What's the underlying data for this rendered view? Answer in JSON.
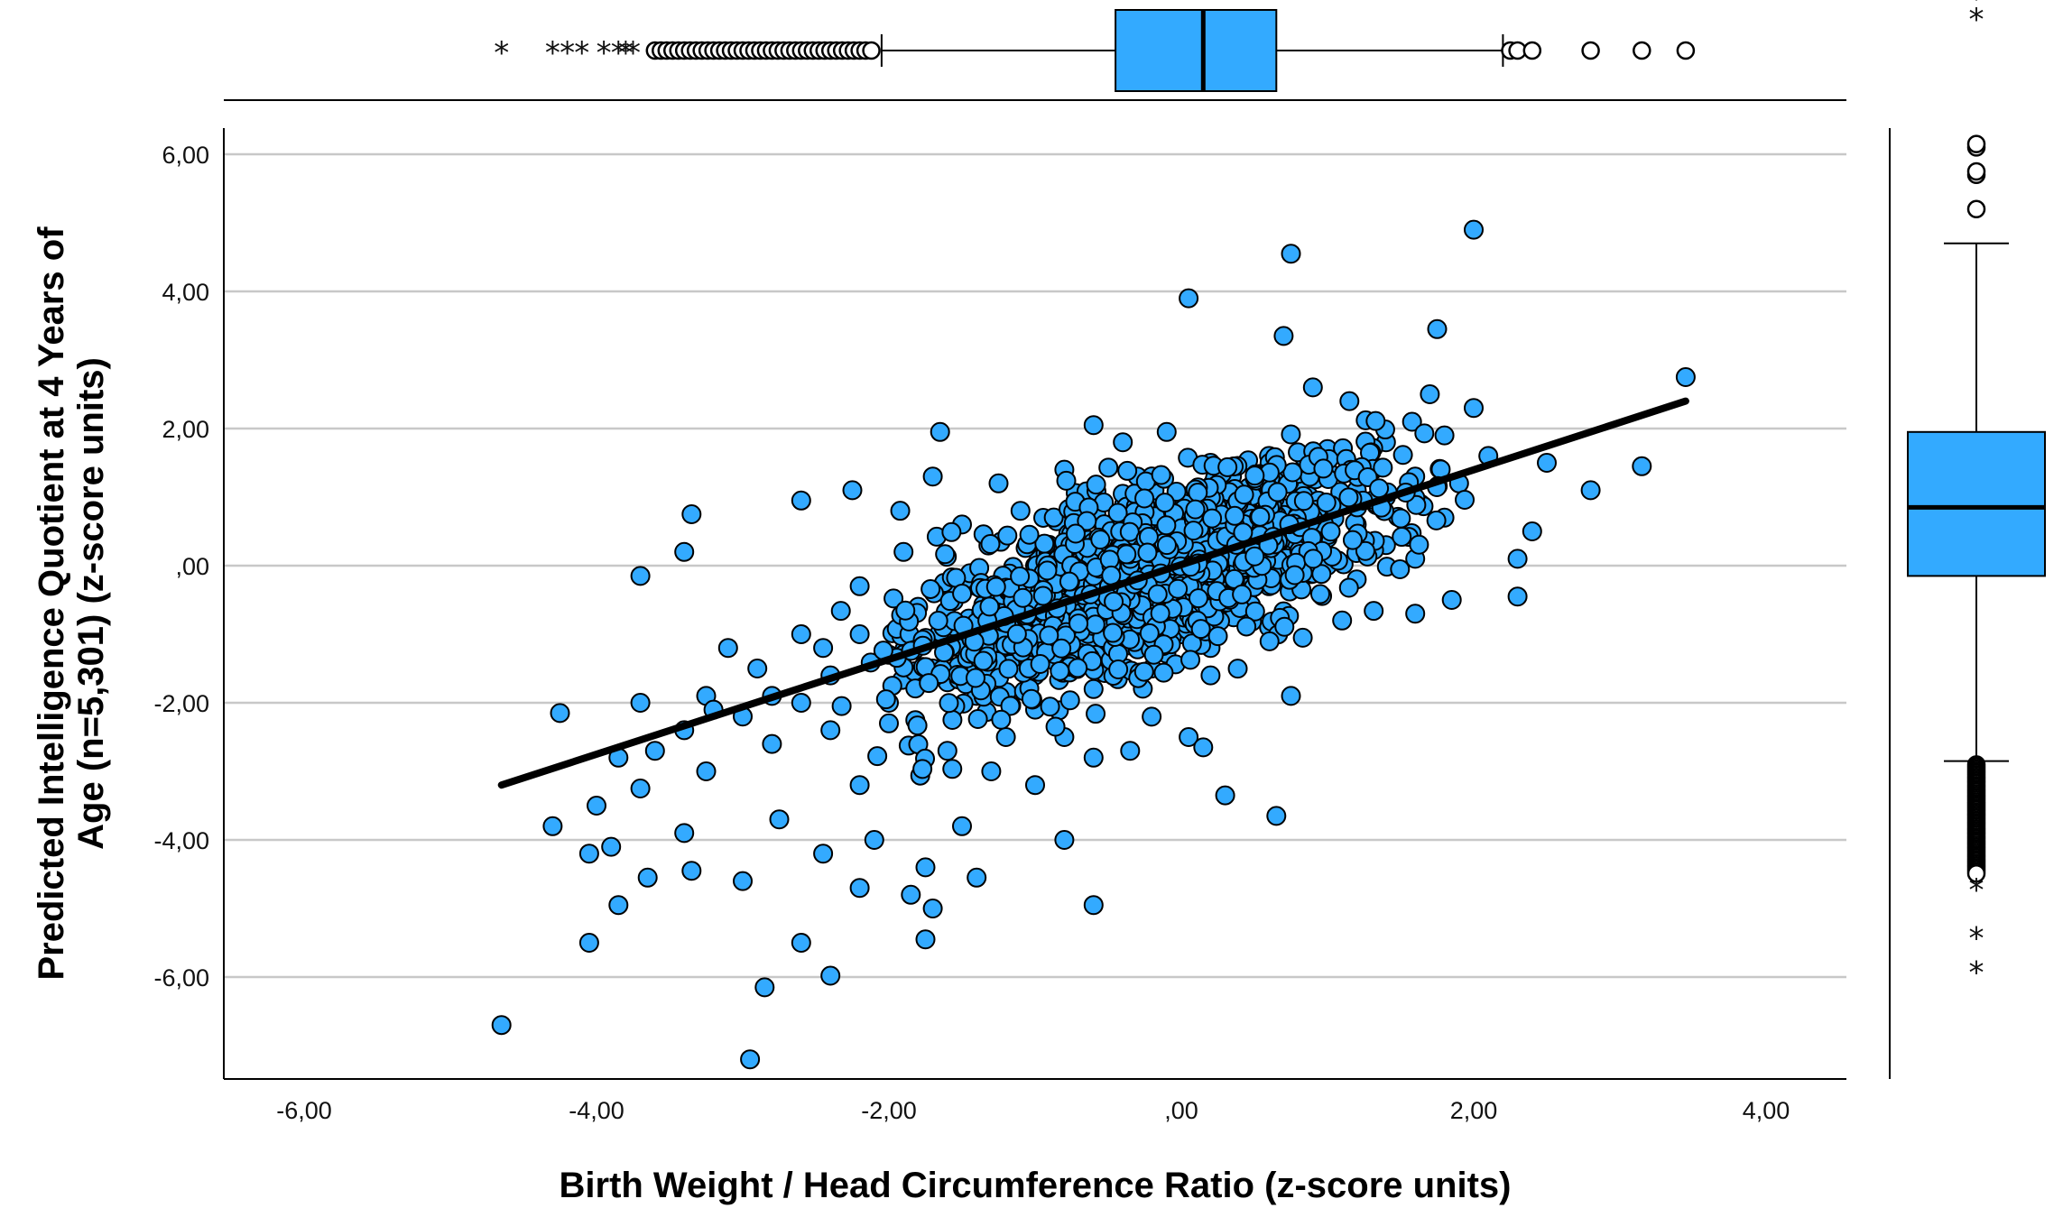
{
  "chart_data": {
    "type": "scatter",
    "title": "",
    "xlabel": "Birth Weight / Head Circumference Ratio (z-score units)",
    "ylabel_line1": "Predicted Intelligence Quotient at 4 Years of",
    "ylabel_line2": "Age (n=5,301) (z-score units)",
    "xlim": [
      -7.0,
      4.6
    ],
    "ylim": [
      -7.5,
      6.4
    ],
    "x_ticks": [
      -6,
      -4,
      -2,
      0,
      2,
      4
    ],
    "x_tick_labels": [
      "-6,00",
      "-4,00",
      "-2,00",
      ",00",
      "2,00",
      "4,00"
    ],
    "y_ticks": [
      6,
      4,
      2,
      0,
      -2,
      -4,
      -6
    ],
    "y_tick_labels": [
      "6,00",
      "4,00",
      "2,00",
      ",00",
      "-2,00",
      "-4,00",
      "-6,00"
    ],
    "grid": "horizontal",
    "marker_color": "#33AAFF",
    "marker_edge": "#000000",
    "fit_line": {
      "x": [
        -4.65,
        3.45
      ],
      "y": [
        -3.2,
        2.4
      ],
      "color": "#000000"
    },
    "sample_points": [
      [
        -4.65,
        -6.7
      ],
      [
        -2.95,
        -7.2
      ],
      [
        -2.85,
        -6.15
      ],
      [
        -2.4,
        -5.98
      ],
      [
        -4.05,
        -5.5
      ],
      [
        -2.6,
        -5.5
      ],
      [
        -1.75,
        -5.45
      ],
      [
        -3.85,
        -4.95
      ],
      [
        -0.6,
        -4.95
      ],
      [
        -1.7,
        -5.0
      ],
      [
        -1.85,
        -4.8
      ],
      [
        -3.0,
        -4.6
      ],
      [
        -3.35,
        -4.45
      ],
      [
        -2.2,
        -4.7
      ],
      [
        -1.4,
        -4.55
      ],
      [
        -3.65,
        -4.55
      ],
      [
        -1.75,
        -4.4
      ],
      [
        -4.3,
        -3.8
      ],
      [
        -4.05,
        -4.2
      ],
      [
        -3.9,
        -4.1
      ],
      [
        -2.45,
        -4.2
      ],
      [
        -2.1,
        -4.0
      ],
      [
        -0.8,
        -4.0
      ],
      [
        -4.0,
        -3.5
      ],
      [
        -3.4,
        -3.9
      ],
      [
        -1.5,
        -3.8
      ],
      [
        -2.75,
        -3.7
      ],
      [
        0.3,
        -3.35
      ],
      [
        0.65,
        -3.65
      ],
      [
        -1.0,
        -3.2
      ],
      [
        -3.7,
        -3.25
      ],
      [
        -3.25,
        -3.0
      ],
      [
        -2.2,
        -3.2
      ],
      [
        -1.3,
        -3.0
      ],
      [
        -4.25,
        -2.15
      ],
      [
        -3.7,
        -2.0
      ],
      [
        -3.25,
        -1.9
      ],
      [
        -2.9,
        -1.5
      ],
      [
        -2.45,
        -1.2
      ],
      [
        -3.7,
        -0.15
      ],
      [
        -3.4,
        0.2
      ],
      [
        -3.35,
        0.75
      ],
      [
        -2.6,
        0.95
      ],
      [
        -2.25,
        1.1
      ],
      [
        -1.7,
        1.3
      ],
      [
        -1.65,
        1.95
      ],
      [
        -1.25,
        1.2
      ],
      [
        -0.8,
        1.4
      ],
      [
        -0.6,
        2.05
      ],
      [
        -0.4,
        1.8
      ],
      [
        -0.1,
        1.95
      ],
      [
        0.05,
        3.9
      ],
      [
        0.75,
        4.55
      ],
      [
        0.7,
        3.35
      ],
      [
        2.0,
        4.9
      ],
      [
        1.75,
        3.45
      ],
      [
        0.9,
        2.6
      ],
      [
        1.15,
        2.4
      ],
      [
        1.7,
        2.5
      ],
      [
        2.0,
        2.3
      ],
      [
        2.5,
        1.5
      ],
      [
        3.15,
        1.45
      ],
      [
        3.45,
        2.75
      ],
      [
        2.8,
        1.1
      ],
      [
        2.4,
        0.5
      ],
      [
        2.3,
        0.1
      ],
      [
        2.3,
        -0.45
      ],
      [
        1.85,
        -0.5
      ],
      [
        1.6,
        -0.7
      ],
      [
        1.1,
        -0.8
      ],
      [
        0.75,
        -1.9
      ],
      [
        0.2,
        -1.6
      ],
      [
        0.05,
        -2.5
      ],
      [
        0.15,
        -2.65
      ],
      [
        -0.35,
        -2.7
      ],
      [
        -0.6,
        -2.8
      ],
      [
        -0.8,
        -2.5
      ],
      [
        -1.2,
        -2.5
      ],
      [
        -1.6,
        -2.7
      ],
      [
        -2.0,
        -2.3
      ],
      [
        -2.4,
        -2.4
      ],
      [
        -2.8,
        -2.6
      ],
      [
        -3.0,
        -2.2
      ],
      [
        -3.4,
        -2.4
      ],
      [
        -3.6,
        -2.7
      ],
      [
        -3.85,
        -2.8
      ],
      [
        -3.1,
        -1.2
      ],
      [
        -2.6,
        -1.0
      ],
      [
        -2.2,
        -0.3
      ],
      [
        -1.9,
        0.2
      ],
      [
        -1.5,
        0.6
      ],
      [
        -1.1,
        0.8
      ],
      [
        -0.7,
        1.0
      ],
      [
        -0.3,
        1.3
      ],
      [
        0.2,
        1.5
      ],
      [
        0.6,
        1.6
      ],
      [
        1.0,
        1.7
      ],
      [
        1.4,
        1.8
      ],
      [
        1.8,
        1.9
      ],
      [
        1.2,
        1.1
      ],
      [
        0.8,
        0.9
      ],
      [
        0.4,
        0.5
      ],
      [
        0.0,
        0.2
      ],
      [
        -0.4,
        -0.1
      ],
      [
        -0.8,
        -0.4
      ],
      [
        -1.2,
        -0.7
      ],
      [
        -1.6,
        -1.0
      ],
      [
        -2.0,
        -1.3
      ],
      [
        -2.4,
        -1.6
      ],
      [
        -2.8,
        -1.9
      ],
      [
        -3.2,
        -2.1
      ],
      [
        -1.4,
        -1.9
      ],
      [
        -1.0,
        -1.6
      ],
      [
        -0.6,
        -1.2
      ],
      [
        -0.2,
        -0.9
      ],
      [
        0.2,
        -0.6
      ],
      [
        0.6,
        -0.3
      ],
      [
        1.0,
        0.0
      ],
      [
        1.4,
        0.3
      ],
      [
        1.8,
        0.7
      ],
      [
        1.6,
        1.3
      ],
      [
        1.2,
        0.6
      ],
      [
        0.8,
        0.2
      ],
      [
        0.4,
        -0.2
      ],
      [
        0.0,
        -0.5
      ],
      [
        -0.4,
        -0.8
      ],
      [
        -0.8,
        -1.1
      ],
      [
        -1.2,
        -1.4
      ],
      [
        -1.6,
        -1.7
      ],
      [
        -2.0,
        -2.0
      ],
      [
        -1.8,
        -0.6
      ],
      [
        -1.4,
        -0.3
      ],
      [
        -1.0,
        0.0
      ],
      [
        -0.6,
        0.3
      ],
      [
        -0.2,
        0.6
      ],
      [
        0.2,
        0.9
      ],
      [
        0.6,
        1.2
      ],
      [
        1.0,
        1.4
      ],
      [
        1.4,
        1.0
      ],
      [
        1.0,
        0.4
      ],
      [
        0.6,
        -0.9
      ],
      [
        0.2,
        -1.2
      ],
      [
        -0.2,
        -1.5
      ],
      [
        -0.6,
        -1.8
      ],
      [
        -1.0,
        -2.1
      ],
      [
        -0.4,
        0.0
      ],
      [
        0.0,
        -1.0
      ],
      [
        0.4,
        0.3
      ],
      [
        0.8,
        0.6
      ],
      [
        1.2,
        -0.2
      ],
      [
        1.6,
        0.1
      ],
      [
        1.9,
        1.2
      ],
      [
        2.1,
        1.6
      ],
      [
        -2.6,
        -2.0
      ],
      [
        -2.2,
        -1.0
      ],
      [
        -1.7,
        -1.5
      ]
    ],
    "top_boxplot": {
      "variable": "Birth Weight / Head Circumference Ratio (z-score units)",
      "q1": -0.45,
      "median": 0.15,
      "q3": 0.65,
      "whisker_low": -2.05,
      "whisker_high": 2.2,
      "outliers_circle": [
        2.25,
        2.3,
        2.4,
        2.8,
        3.15,
        3.45
      ],
      "outliers_star": [
        -4.65,
        -4.3,
        -4.2,
        -4.1,
        -3.95,
        -3.85,
        -3.8,
        -3.75
      ]
    },
    "right_boxplot": {
      "variable": "Predicted Intelligence Quotient at 4 Years of Age (z-score units)",
      "q1": -0.15,
      "median": 0.85,
      "q3": 1.95,
      "whisker_low": -2.85,
      "whisker_high": 4.7,
      "outliers_circle": [
        5.2,
        5.7,
        5.75,
        6.1,
        6.15
      ],
      "outliers_star": [
        8.0,
        8.3,
        -4.7,
        -5.4,
        -5.9
      ]
    },
    "box_color": "#33AAFF"
  }
}
